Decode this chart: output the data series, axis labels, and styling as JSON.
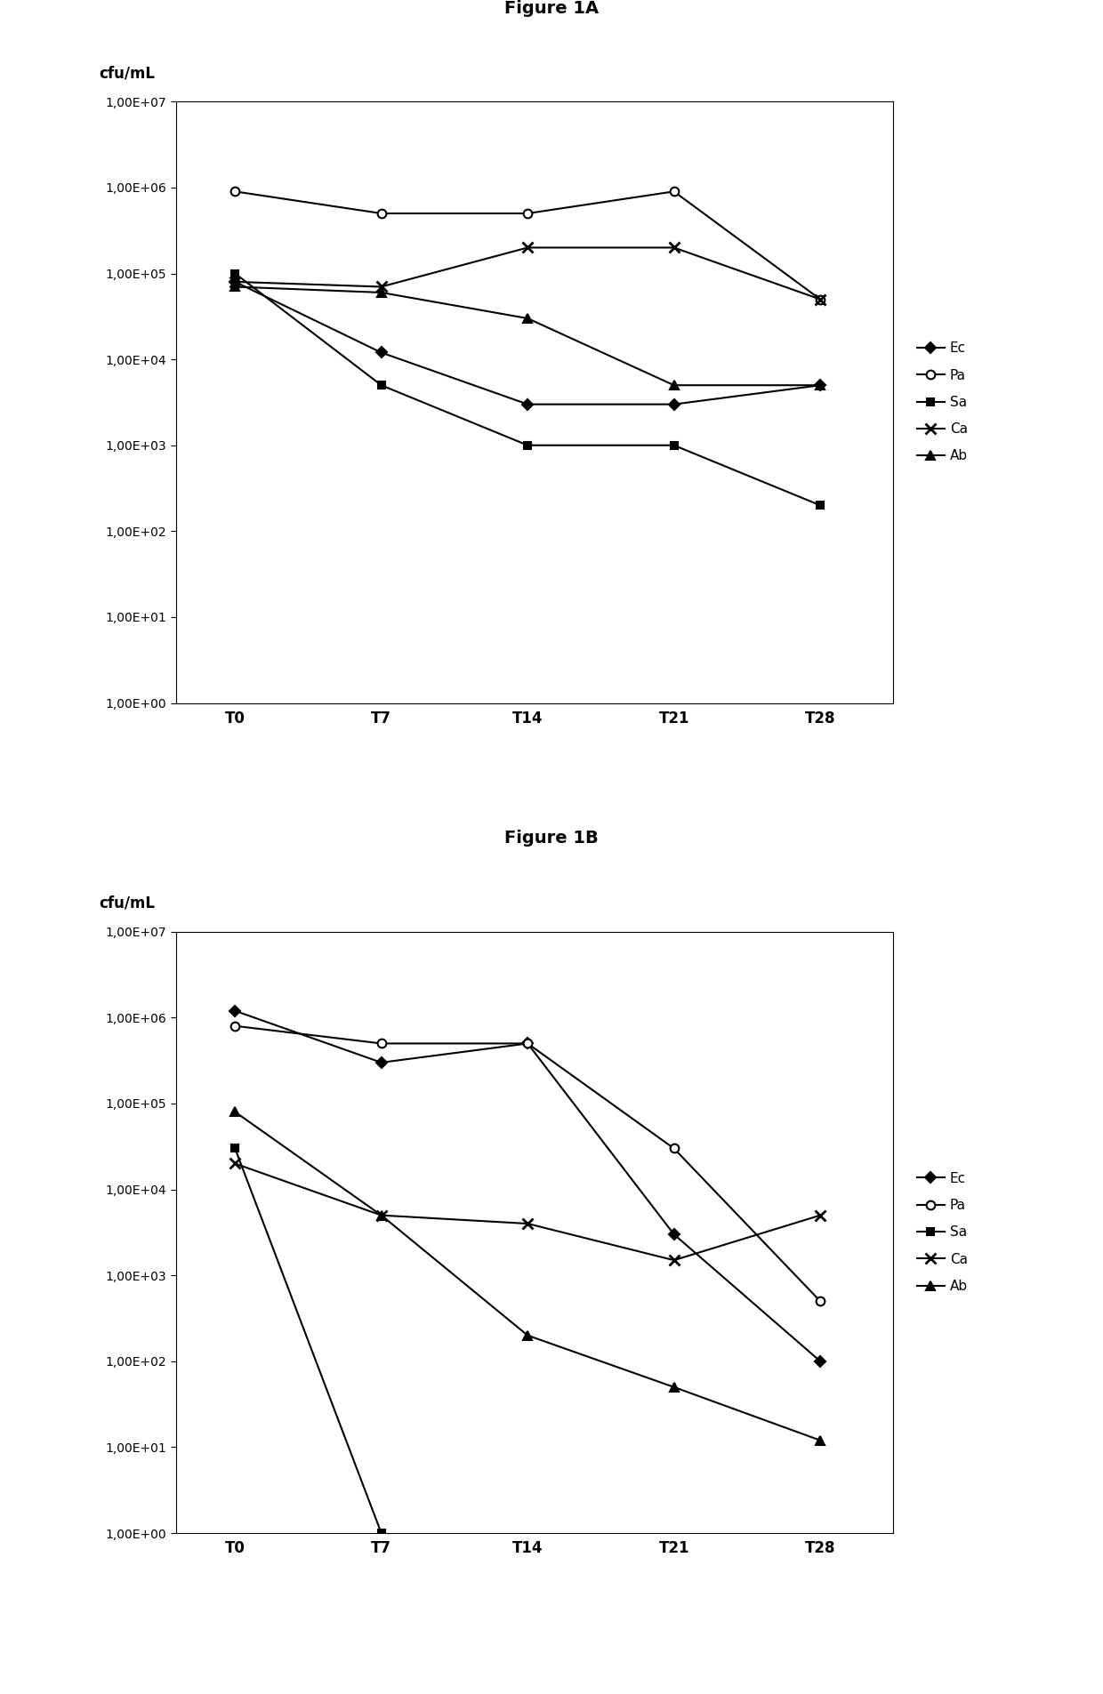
{
  "fig1A": {
    "title": "Figure 1A",
    "series": {
      "Ec": [
        80000,
        12000,
        3000,
        3000,
        5000
      ],
      "Pa": [
        900000,
        500000,
        500000,
        900000,
        50000
      ],
      "Sa": [
        100000,
        5000,
        1000,
        1000,
        200
      ],
      "Ca": [
        80000,
        70000,
        200000,
        200000,
        50000
      ],
      "Ab": [
        70000,
        60000,
        30000,
        5000,
        5000
      ]
    }
  },
  "fig1B": {
    "title": "Figure 1B",
    "series": {
      "Ec": [
        1200000,
        300000,
        500000,
        3000,
        100
      ],
      "Pa": [
        800000,
        500000,
        500000,
        30000,
        500
      ],
      "Sa": [
        30000,
        null,
        null,
        null,
        null
      ],
      "Ca": [
        20000,
        5000,
        4000,
        1500,
        5000
      ],
      "Ab": [
        80000,
        5000,
        200,
        50,
        12
      ]
    }
  },
  "x_labels": [
    "T0",
    "T7",
    "T14",
    "T21",
    "T28"
  ],
  "x_positions": [
    0,
    1,
    2,
    3,
    4
  ],
  "series_order": [
    "Ec",
    "Pa",
    "Sa",
    "Ca",
    "Ab"
  ],
  "marker_styles": {
    "Ec": {
      "marker": "D",
      "mfc": "black",
      "mec": "black",
      "ms": 6,
      "mew": 1.5
    },
    "Pa": {
      "marker": "o",
      "mfc": "white",
      "mec": "black",
      "ms": 7,
      "mew": 1.5
    },
    "Sa": {
      "marker": "s",
      "mfc": "black",
      "mec": "black",
      "ms": 6,
      "mew": 1.5
    },
    "Ca": {
      "marker": "x",
      "mfc": "black",
      "mec": "black",
      "ms": 9,
      "mew": 2.0
    },
    "Ab": {
      "marker": "^",
      "mfc": "black",
      "mec": "black",
      "ms": 7,
      "mew": 1.5
    }
  },
  "ytick_values": [
    1.0,
    10.0,
    100.0,
    1000.0,
    10000.0,
    100000.0,
    1000000.0,
    10000000.0
  ],
  "ytick_labels": [
    "1,00E+00",
    "1,00E+01",
    "1,00E+02",
    "1,00E+03",
    "1,00E+04",
    "1,00E+05",
    "1,00E+06",
    "1,00E+07"
  ],
  "ylim": [
    1.0,
    10000000.0
  ],
  "ylabel": "cfu/mL",
  "line_color": "#000000",
  "background_color": "#ffffff",
  "title_fontsize": 14,
  "label_fontsize": 12,
  "tick_fontsize": 10,
  "legend_fontsize": 11
}
